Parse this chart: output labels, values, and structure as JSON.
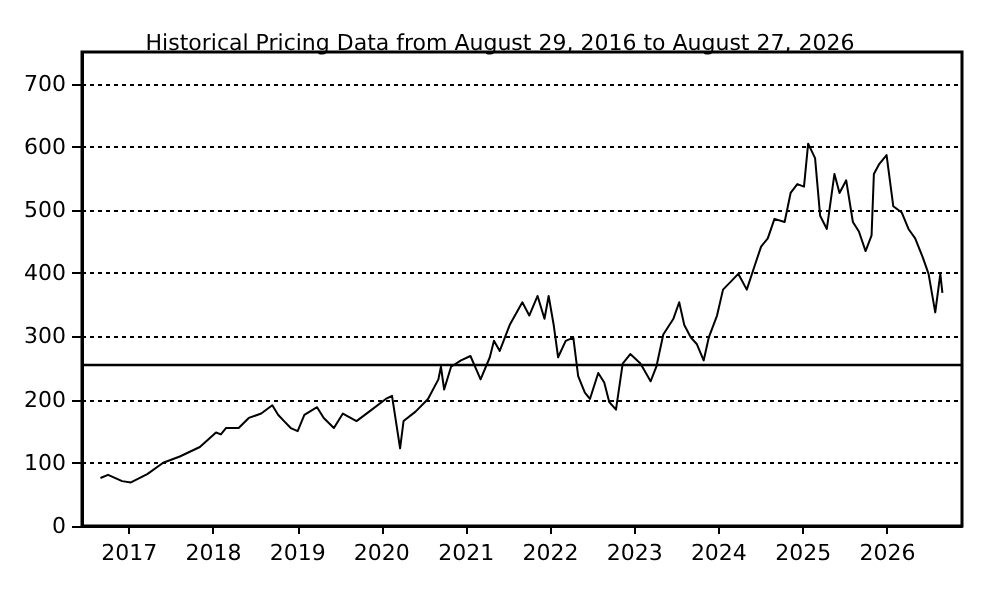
{
  "chart_data": {
    "type": "line",
    "title": "Historical Pricing Data from August 29, 2016 to August 27, 2026",
    "x": [
      "2016-08-29",
      "2016-10-01",
      "2016-12-01",
      "2017-01-08",
      "2017-03-20",
      "2017-05-28",
      "2017-08-08",
      "2017-11-03",
      "2018-01-12",
      "2018-02-02",
      "2018-02-24",
      "2018-04-20",
      "2018-06-03",
      "2018-07-27",
      "2018-09-13",
      "2018-10-08",
      "2018-11-03",
      "2018-12-02",
      "2019-01-01",
      "2019-01-30",
      "2019-03-26",
      "2019-04-24",
      "2019-06-07",
      "2019-07-16",
      "2019-09-13",
      "2019-11-07",
      "2020-01-18",
      "2020-02-14",
      "2020-03-20",
      "2020-04-04",
      "2020-05-26",
      "2020-07-19",
      "2020-09-02",
      "2020-09-13",
      "2020-09-27",
      "2020-10-27",
      "2020-12-09",
      "2021-01-19",
      "2021-03-04",
      "2021-04-13",
      "2021-05-01",
      "2021-05-26",
      "2021-07-08",
      "2021-09-01",
      "2021-10-01",
      "2021-11-06",
      "2021-12-06",
      "2021-12-24",
      "2022-01-15",
      "2022-02-03",
      "2022-03-08",
      "2022-04-10",
      "2022-05-01",
      "2022-05-30",
      "2022-06-21",
      "2022-07-27",
      "2022-08-22",
      "2022-09-13",
      "2022-10-12",
      "2022-11-10",
      "2022-12-13",
      "2023-01-26",
      "2023-03-11",
      "2023-04-05",
      "2023-05-05",
      "2023-06-18",
      "2023-07-13",
      "2023-08-04",
      "2023-09-02",
      "2023-09-27",
      "2023-10-27",
      "2023-11-18",
      "2023-12-24",
      "2024-01-19",
      "2024-02-28",
      "2024-03-25",
      "2024-05-01",
      "2024-06-07",
      "2024-07-02",
      "2024-07-31",
      "2024-08-29",
      "2024-10-12",
      "2024-11-07",
      "2024-12-06",
      "2025-01-04",
      "2025-01-22",
      "2025-02-21",
      "2025-03-15",
      "2025-04-13",
      "2025-05-16",
      "2025-06-07",
      "2025-07-06",
      "2025-08-04",
      "2025-08-30",
      "2025-09-28",
      "2025-10-24",
      "2025-11-03",
      "2025-11-25",
      "2025-12-28",
      "2026-01-26",
      "2026-03-04",
      "2026-04-02",
      "2026-05-01",
      "2026-06-03",
      "2026-06-28",
      "2026-07-27",
      "2026-08-18",
      "2026-08-27"
    ],
    "series": [
      {
        "color": "#000000",
        "values": [
          76,
          81,
          71,
          69,
          82,
          100,
          110,
          125,
          148,
          145,
          155,
          155,
          171,
          178,
          191,
          176,
          166,
          155,
          150,
          176,
          188,
          171,
          155,
          178,
          166,
          181,
          201,
          206,
          123,
          166,
          181,
          201,
          232,
          252,
          216,
          252,
          262,
          269,
          232,
          267,
          293,
          277,
          318,
          354,
          333,
          364,
          328,
          364,
          318,
          267,
          293,
          298,
          237,
          211,
          201,
          242,
          227,
          196,
          184,
          257,
          272,
          257,
          229,
          252,
          303,
          328,
          354,
          318,
          298,
          288,
          262,
          298,
          333,
          374,
          389,
          399,
          374,
          415,
          442,
          455,
          486,
          481,
          527,
          541,
          537,
          605,
          582,
          491,
          470,
          557,
          527,
          547,
          481,
          466,
          435,
          460,
          557,
          572,
          587,
          506,
          496,
          470,
          455,
          425,
          399,
          338,
          399,
          369
        ]
      }
    ],
    "xlim": [
      "2016-06-10",
      "2026-11-20"
    ],
    "xticks": [
      "2017",
      "2018",
      "2019",
      "2020",
      "2021",
      "2022",
      "2023",
      "2024",
      "2025",
      "2026"
    ],
    "ylim": [
      0,
      750
    ],
    "yticks": [
      0,
      100,
      200,
      300,
      400,
      500,
      600,
      700
    ],
    "grid": "y",
    "ref_lines": [
      {
        "axis": "y",
        "value": 255,
        "color": "#000000"
      }
    ],
    "marker": "none",
    "line_style": "solid"
  }
}
